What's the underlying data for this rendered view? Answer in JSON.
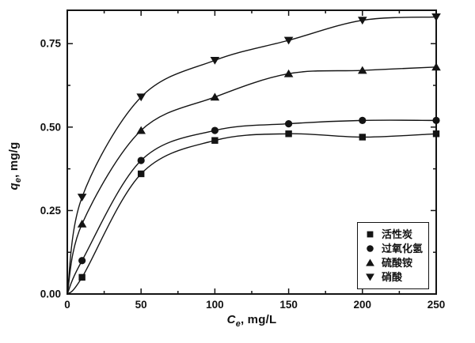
{
  "figure": {
    "background": "#ffffff",
    "ink_color": "#141414"
  },
  "chart_data": {
    "type": "scatter",
    "title": "",
    "xlabel": "Ce, mg/L",
    "ylabel": "qe, mg/g",
    "xlabel_parts": {
      "var": "C",
      "sub": "e",
      "rest": ", mg/L"
    },
    "ylabel_parts": {
      "var": "q",
      "sub": "e",
      "rest": ", mg/g"
    },
    "x": [
      10,
      50,
      100,
      150,
      200,
      250
    ],
    "series": [
      {
        "name": "活性炭",
        "marker": "square",
        "values": [
          0.05,
          0.36,
          0.46,
          0.48,
          0.47,
          0.48
        ]
      },
      {
        "name": "过氧化氢",
        "marker": "circle",
        "values": [
          0.1,
          0.4,
          0.49,
          0.51,
          0.52,
          0.52
        ]
      },
      {
        "name": "硫酸铵",
        "marker": "triangle-up",
        "values": [
          0.21,
          0.49,
          0.59,
          0.66,
          0.67,
          0.68
        ]
      },
      {
        "name": "硝酸",
        "marker": "triangle-down",
        "values": [
          0.29,
          0.59,
          0.7,
          0.76,
          0.82,
          0.83
        ]
      }
    ],
    "curve_style": "smooth-fit-through-origin",
    "xlim": [
      0,
      250
    ],
    "ylim": [
      0,
      0.85
    ],
    "x_major_ticks": [
      0,
      50,
      100,
      150,
      200,
      250
    ],
    "x_tick_labels": [
      "0",
      "50",
      "100",
      "150",
      "200",
      "250"
    ],
    "x_minor_ticks": [
      25,
      75,
      125,
      175,
      225
    ],
    "y_major_ticks": [
      0,
      0.25,
      0.5,
      0.75
    ],
    "y_tick_labels": [
      "0.00",
      "0.25",
      "0.50",
      "0.75"
    ],
    "y_minor_ticks": [
      0.125,
      0.375,
      0.625
    ],
    "grid": false,
    "tick_direction": "in",
    "legend_position": "inside-bottom-right"
  }
}
